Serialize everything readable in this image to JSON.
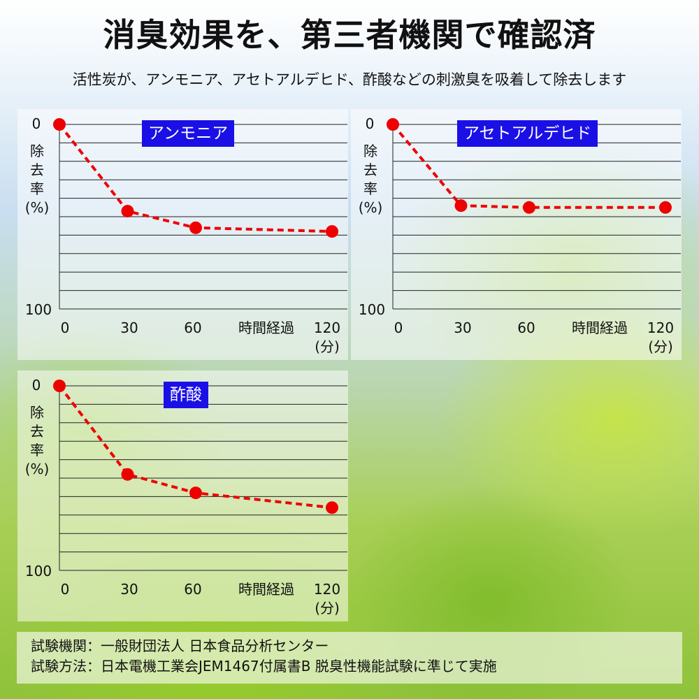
{
  "title": "消臭効果を、第三者機関で確認済",
  "subtitle": "活性炭が、アンモニア、アセトアルデヒド、酢酸などの刺激臭を吸着して除去します",
  "footer": {
    "line1": "試験機関：一般財団法人 日本食品分析センター",
    "line2": "試験方法：日本電機工業会JEM1467付属書B 脱臭性機能試験に準じて実施"
  },
  "colors": {
    "badge": "#1a10e6",
    "series": "#ee0000",
    "grid": "#222222"
  },
  "chart_data": [
    {
      "type": "line",
      "title": "アンモニア",
      "ylabel_chars": [
        "除",
        "去",
        "率"
      ],
      "ylabel_unit": "(%)",
      "y_tick_top": "0",
      "y_tick_bottom": "100",
      "ylim": [
        0,
        100
      ],
      "y_inverted": true,
      "xlabel": "時間経過",
      "xunit": "(分)",
      "x_ticks": [
        "0",
        "30",
        "60",
        "120"
      ],
      "x": [
        0,
        30,
        60,
        120
      ],
      "values": [
        0,
        47,
        56,
        58
      ],
      "grid": true
    },
    {
      "type": "line",
      "title": "アセトアルデヒド",
      "ylabel_chars": [
        "除",
        "去",
        "率"
      ],
      "ylabel_unit": "(%)",
      "y_tick_top": "0",
      "y_tick_bottom": "100",
      "ylim": [
        0,
        100
      ],
      "y_inverted": true,
      "xlabel": "時間経過",
      "xunit": "(分)",
      "x_ticks": [
        "0",
        "30",
        "60",
        "120"
      ],
      "x": [
        0,
        30,
        60,
        120
      ],
      "values": [
        0,
        44,
        45,
        45
      ],
      "grid": true
    },
    {
      "type": "line",
      "title": "酢酸",
      "ylabel_chars": [
        "除",
        "去",
        "率"
      ],
      "ylabel_unit": "(%)",
      "y_tick_top": "0",
      "y_tick_bottom": "100",
      "ylim": [
        0,
        100
      ],
      "y_inverted": true,
      "xlabel": "時間経過",
      "xunit": "(分)",
      "x_ticks": [
        "0",
        "30",
        "60",
        "120"
      ],
      "x": [
        0,
        30,
        60,
        120
      ],
      "values": [
        0,
        48,
        58,
        66
      ],
      "grid": true
    }
  ]
}
